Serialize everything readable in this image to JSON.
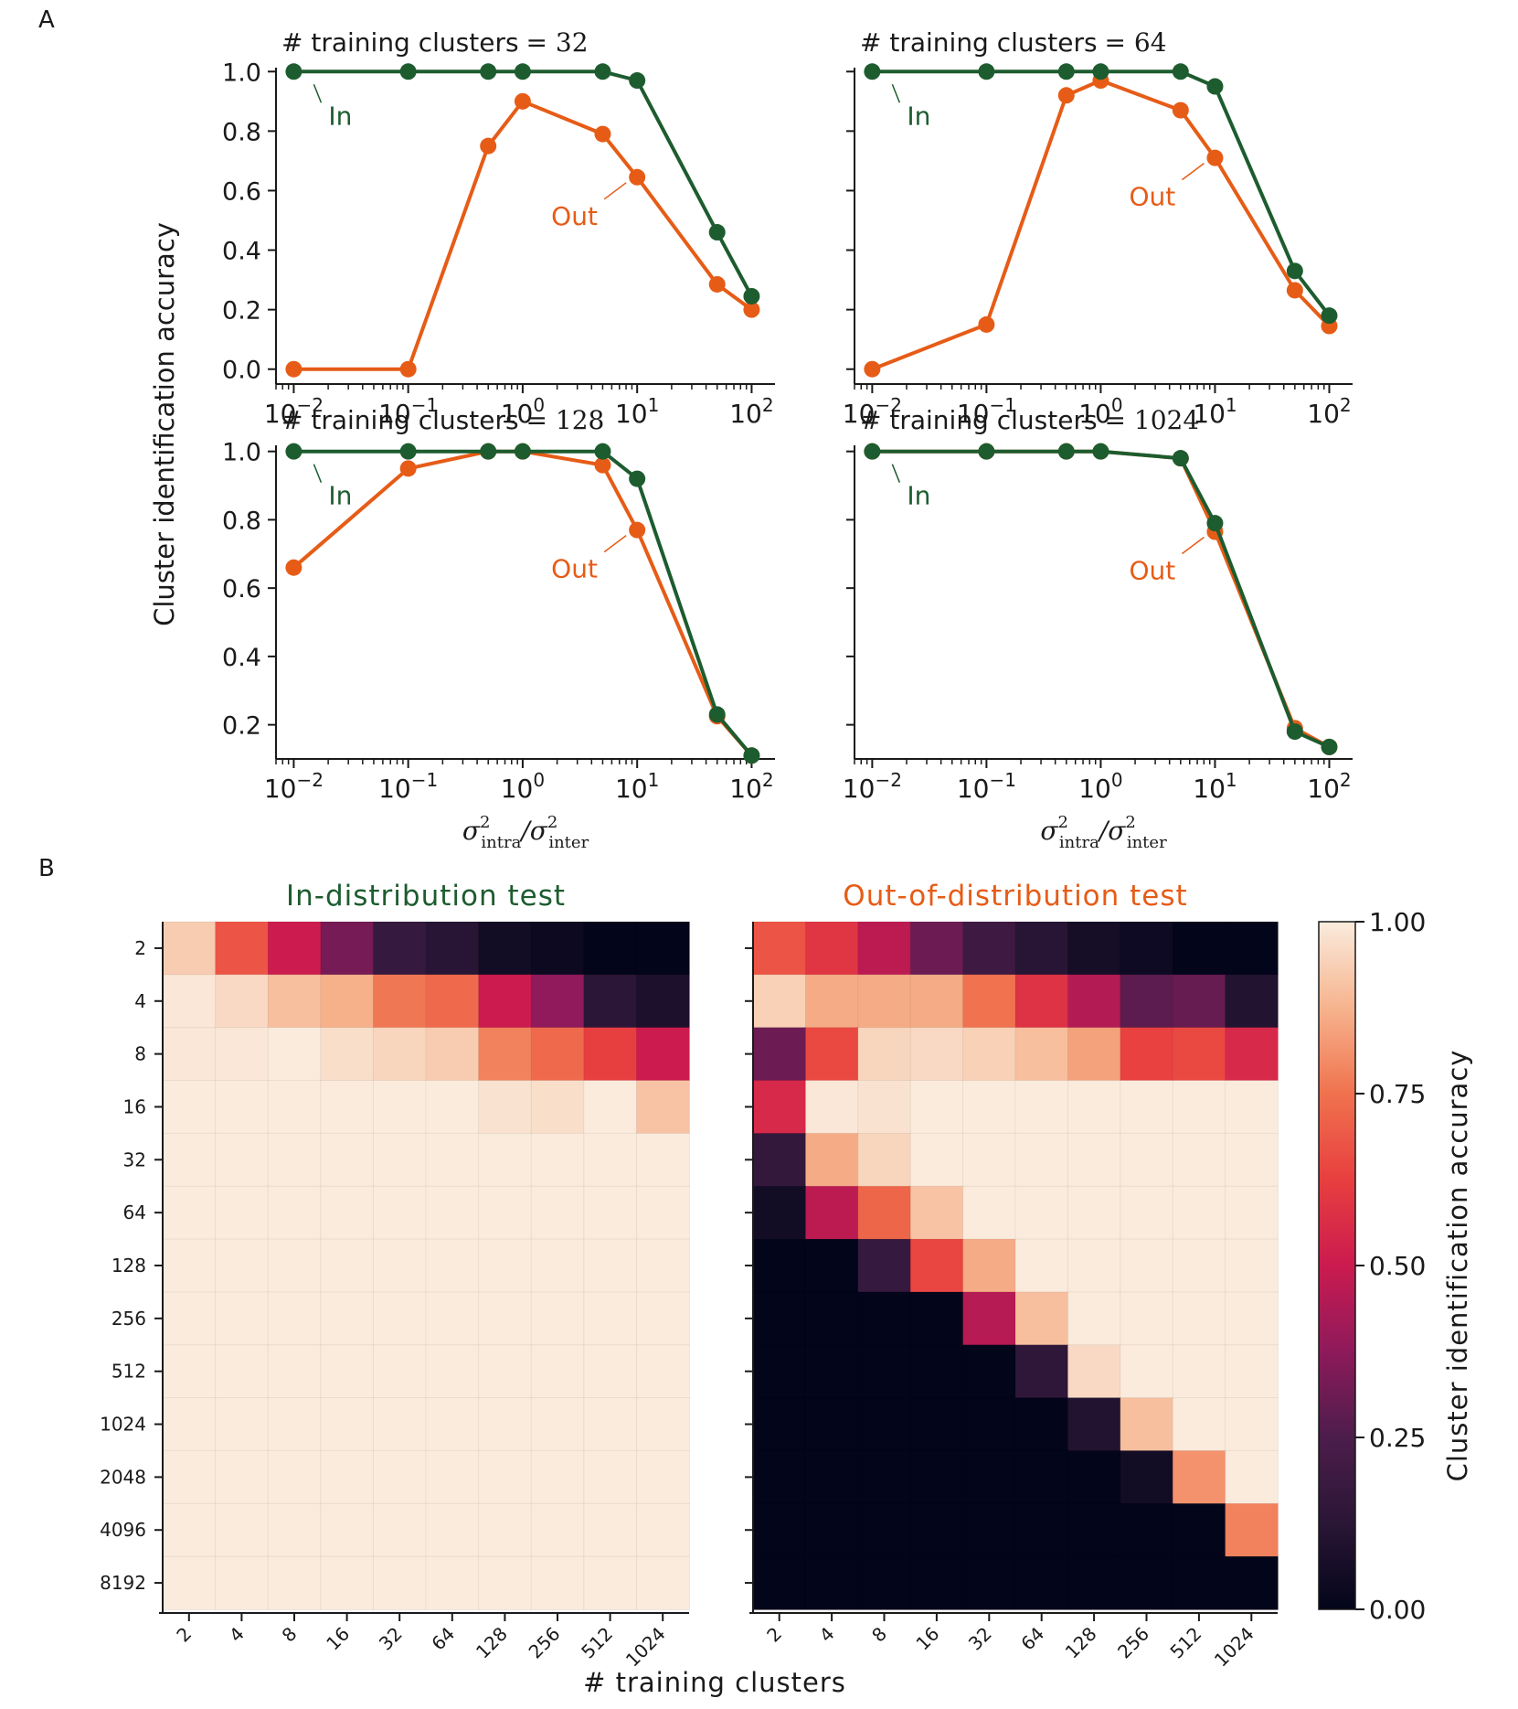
{
  "panel_labels": {
    "a": "A",
    "b": "B"
  },
  "colors": {
    "in": "#1d5c2f",
    "out": "#e65c17",
    "text": "#1a1a1a"
  },
  "chart_data": [
    {
      "type": "line",
      "title": "# training clusters = 32",
      "title_prefix": "# training clusters",
      "title_value": "= 32",
      "xscale": "log",
      "x": [
        0.01,
        0.1,
        0.5,
        1,
        5,
        10,
        50,
        100
      ],
      "xlim": [
        0.007,
        160
      ],
      "ylim": [
        -0.05,
        1.05
      ],
      "yticks": [
        0.0,
        0.2,
        0.4,
        0.6,
        0.8,
        1.0
      ],
      "ytick_labels": [
        "0.0",
        "0.2",
        "0.4",
        "0.6",
        "0.8",
        "1.0"
      ],
      "series": [
        {
          "name": "In",
          "label": "In",
          "values": [
            1.0,
            1.0,
            1.0,
            1.0,
            1.0,
            0.97,
            0.46,
            0.245
          ]
        },
        {
          "name": "Out",
          "label": "Out",
          "values": [
            0.0,
            0.0,
            0.75,
            0.9,
            0.79,
            0.645,
            0.285,
            0.2
          ]
        }
      ]
    },
    {
      "type": "line",
      "title": "# training clusters = 64",
      "title_prefix": "# training clusters",
      "title_value": "= 64",
      "xscale": "log",
      "x": [
        0.01,
        0.1,
        0.5,
        1,
        5,
        10,
        50,
        100
      ],
      "xlim": [
        0.007,
        160
      ],
      "ylim": [
        -0.05,
        1.05
      ],
      "series": [
        {
          "name": "In",
          "label": "In",
          "values": [
            1.0,
            1.0,
            1.0,
            1.0,
            1.0,
            0.95,
            0.33,
            0.18
          ]
        },
        {
          "name": "Out",
          "label": "Out",
          "values": [
            0.0,
            0.15,
            0.92,
            0.97,
            0.87,
            0.71,
            0.265,
            0.145
          ]
        }
      ]
    },
    {
      "type": "line",
      "title": "# training clusters = 128",
      "title_prefix": "# training clusters",
      "title_value": "= 128",
      "xscale": "log",
      "x": [
        0.01,
        0.1,
        0.5,
        1,
        5,
        10,
        50,
        100
      ],
      "xlim": [
        0.007,
        160
      ],
      "ylim": [
        0.1,
        1.05
      ],
      "yticks": [
        0.2,
        0.4,
        0.6,
        0.8,
        1.0
      ],
      "ytick_labels": [
        "0.2",
        "0.4",
        "0.6",
        "0.8",
        "1.0"
      ],
      "xlabel_tex": "σ²intra/σ²inter",
      "series": [
        {
          "name": "In",
          "label": "In",
          "values": [
            1.0,
            1.0,
            1.0,
            1.0,
            1.0,
            0.92,
            0.23,
            0.11
          ]
        },
        {
          "name": "Out",
          "label": "Out",
          "values": [
            0.66,
            0.95,
            1.0,
            1.0,
            0.96,
            0.77,
            0.225,
            0.11
          ]
        }
      ]
    },
    {
      "type": "line",
      "title": "# training clusters = 1024",
      "title_prefix": "# training clusters",
      "title_value": "= 1024",
      "xscale": "log",
      "x": [
        0.01,
        0.1,
        0.5,
        1,
        5,
        10,
        50,
        100
      ],
      "xlim": [
        0.007,
        160
      ],
      "ylim": [
        0.1,
        1.05
      ],
      "series": [
        {
          "name": "In",
          "label": "In",
          "values": [
            1.0,
            1.0,
            1.0,
            1.0,
            0.98,
            0.79,
            0.18,
            0.135
          ]
        },
        {
          "name": "Out",
          "label": "Out",
          "values": [
            1.0,
            1.0,
            1.0,
            1.0,
            0.98,
            0.765,
            0.19,
            0.135
          ]
        }
      ]
    },
    {
      "type": "heatmap",
      "title": "In-distribution test",
      "x_categories": [
        "2",
        "4",
        "8",
        "16",
        "32",
        "64",
        "128",
        "256",
        "512",
        "1024"
      ],
      "y_categories": [
        "2",
        "4",
        "8",
        "16",
        "32",
        "64",
        "128",
        "256",
        "512",
        "1024",
        "2048",
        "4096",
        "8192"
      ],
      "values": [
        [
          0.93,
          0.68,
          0.5,
          0.33,
          0.17,
          0.12,
          0.05,
          0.03,
          0.0,
          0.0
        ],
        [
          0.99,
          0.96,
          0.9,
          0.87,
          0.76,
          0.73,
          0.5,
          0.38,
          0.13,
          0.08
        ],
        [
          0.99,
          0.99,
          1.0,
          0.97,
          0.95,
          0.93,
          0.78,
          0.73,
          0.62,
          0.5
        ],
        [
          1.0,
          1.0,
          1.0,
          1.0,
          1.0,
          1.0,
          0.98,
          0.97,
          1.0,
          0.91
        ],
        [
          1.0,
          1.0,
          1.0,
          1.0,
          1.0,
          1.0,
          1.0,
          1.0,
          1.0,
          1.0
        ],
        [
          1.0,
          1.0,
          1.0,
          1.0,
          1.0,
          1.0,
          1.0,
          1.0,
          1.0,
          1.0
        ],
        [
          1.0,
          1.0,
          1.0,
          1.0,
          1.0,
          1.0,
          1.0,
          1.0,
          1.0,
          1.0
        ],
        [
          1.0,
          1.0,
          1.0,
          1.0,
          1.0,
          1.0,
          1.0,
          1.0,
          1.0,
          1.0
        ],
        [
          1.0,
          1.0,
          1.0,
          1.0,
          1.0,
          1.0,
          1.0,
          1.0,
          1.0,
          1.0
        ],
        [
          1.0,
          1.0,
          1.0,
          1.0,
          1.0,
          1.0,
          1.0,
          1.0,
          1.0,
          1.0
        ],
        [
          1.0,
          1.0,
          1.0,
          1.0,
          1.0,
          1.0,
          1.0,
          1.0,
          1.0,
          1.0
        ],
        [
          1.0,
          1.0,
          1.0,
          1.0,
          1.0,
          1.0,
          1.0,
          1.0,
          1.0,
          1.0
        ],
        [
          1.0,
          1.0,
          1.0,
          1.0,
          1.0,
          1.0,
          1.0,
          1.0,
          1.0,
          1.0
        ]
      ],
      "clim": [
        0,
        1
      ]
    },
    {
      "type": "heatmap",
      "title": "Out-of-distribution test",
      "x_categories": [
        "2",
        "4",
        "8",
        "16",
        "32",
        "64",
        "128",
        "256",
        "512",
        "1024"
      ],
      "y_categories": [
        "2",
        "4",
        "8",
        "16",
        "32",
        "64",
        "128",
        "256",
        "512",
        "1024",
        "2048",
        "4096",
        "8192"
      ],
      "values": [
        [
          0.68,
          0.59,
          0.47,
          0.31,
          0.2,
          0.12,
          0.06,
          0.04,
          0.0,
          0.0
        ],
        [
          0.94,
          0.86,
          0.86,
          0.86,
          0.75,
          0.58,
          0.45,
          0.28,
          0.3,
          0.1
        ],
        [
          0.31,
          0.65,
          0.95,
          0.96,
          0.94,
          0.9,
          0.84,
          0.63,
          0.65,
          0.55
        ],
        [
          0.55,
          0.99,
          0.98,
          1.0,
          1.0,
          1.0,
          1.0,
          1.0,
          1.0,
          1.0
        ],
        [
          0.16,
          0.86,
          0.95,
          1.0,
          1.0,
          1.0,
          1.0,
          1.0,
          1.0,
          1.0
        ],
        [
          0.05,
          0.47,
          0.72,
          0.91,
          1.0,
          1.0,
          1.0,
          1.0,
          1.0,
          1.0
        ],
        [
          0.0,
          0.0,
          0.17,
          0.64,
          0.86,
          1.0,
          1.0,
          1.0,
          1.0,
          1.0
        ],
        [
          0.0,
          0.0,
          0.0,
          0.0,
          0.46,
          0.9,
          1.0,
          1.0,
          1.0,
          1.0
        ],
        [
          0.0,
          0.0,
          0.0,
          0.0,
          0.0,
          0.14,
          0.96,
          1.0,
          1.0,
          1.0
        ],
        [
          0.0,
          0.0,
          0.0,
          0.0,
          0.0,
          0.0,
          0.1,
          0.9,
          1.0,
          1.0
        ],
        [
          0.0,
          0.0,
          0.0,
          0.0,
          0.0,
          0.0,
          0.0,
          0.05,
          0.81,
          1.0
        ],
        [
          0.0,
          0.0,
          0.0,
          0.0,
          0.0,
          0.0,
          0.0,
          0.0,
          0.0,
          0.78
        ],
        [
          0.0,
          0.0,
          0.0,
          0.0,
          0.0,
          0.0,
          0.0,
          0.0,
          0.0,
          0.0
        ]
      ],
      "clim": [
        0,
        1
      ]
    }
  ],
  "shared": {
    "line_ylabel": "Cluster identification accuracy",
    "line_xticks": [
      {
        "base": "10",
        "exp": "−2",
        "value": 0.01
      },
      {
        "base": "10",
        "exp": "−1",
        "value": 0.1
      },
      {
        "base": "10",
        "exp": "0",
        "value": 1
      },
      {
        "base": "10",
        "exp": "1",
        "value": 10
      },
      {
        "base": "10",
        "exp": "2",
        "value": 100
      }
    ],
    "xlabel_parts": {
      "sigma": "σ",
      "sq": "2",
      "intra": "intra",
      "slash": "/",
      "inter": "inter"
    },
    "heatmap_xlabel": "# training clusters",
    "colorbar_label": "Cluster identification accuracy",
    "colorbar_ticks": [
      "0.00",
      "0.25",
      "0.50",
      "0.75",
      "1.00"
    ]
  }
}
